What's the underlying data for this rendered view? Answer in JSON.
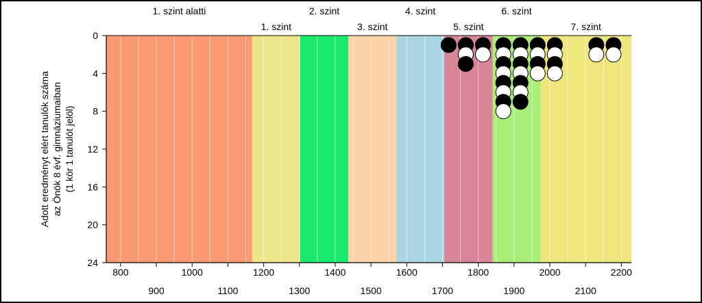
{
  "chart_data": {
    "type": "scatter",
    "ylabel_lines": [
      "Adott eredményt elért tanulók száma",
      "az Önök 8 évf. gimnáziumaiban",
      "(1 kör 1 tanulót jelöl)"
    ],
    "xlim": [
      760,
      2228
    ],
    "ylim": [
      0,
      24
    ],
    "y_reversed": true,
    "y_ticks": [
      0,
      4,
      8,
      12,
      16,
      20,
      24
    ],
    "x_ticks_row1": [
      800,
      1000,
      1200,
      1400,
      1600,
      1800,
      2000,
      2200
    ],
    "x_ticks_row2": [
      900,
      1100,
      1300,
      1500,
      1700,
      1900,
      2100
    ],
    "minor_step": 50,
    "bands": [
      {
        "label": "1. szint alatti",
        "x0": 760,
        "x1": 1168,
        "color": "#fb9a72",
        "label_row": 1
      },
      {
        "label": "1. szint",
        "x0": 1168,
        "x1": 1302,
        "color": "#ede58a",
        "label_row": 2
      },
      {
        "label": "2. szint",
        "x0": 1302,
        "x1": 1437,
        "color": "#1aea6c",
        "label_row": 1
      },
      {
        "label": "3. szint",
        "x0": 1437,
        "x1": 1571,
        "color": "#fdd3a8",
        "label_row": 2
      },
      {
        "label": "4. szint",
        "x0": 1571,
        "x1": 1705,
        "color": "#acd5e3",
        "label_row": 1
      },
      {
        "label": "5. szint",
        "x0": 1705,
        "x1": 1840,
        "color": "#d98598",
        "label_row": 2
      },
      {
        "label": "6. szint",
        "x0": 1840,
        "x1": 1974,
        "color": "#aaee7a",
        "label_row": 1
      },
      {
        "label": "7. szint",
        "x0": 1974,
        "x1": 2228,
        "color": "#ede67c",
        "label_row": 2
      }
    ],
    "columns": [
      {
        "x": 1717,
        "dots": [
          "black"
        ]
      },
      {
        "x": 1765,
        "dots": [
          "black",
          "white",
          "black"
        ]
      },
      {
        "x": 1813,
        "dots": [
          "black",
          "white"
        ]
      },
      {
        "x": 1870,
        "dots": [
          "black",
          "white",
          "black",
          "white",
          "black",
          "white",
          "black",
          "white"
        ]
      },
      {
        "x": 1918,
        "dots": [
          "black",
          "white",
          "black",
          "white",
          "black",
          "white",
          "black"
        ]
      },
      {
        "x": 1966,
        "dots": [
          "black",
          "white",
          "black",
          "white"
        ]
      },
      {
        "x": 2014,
        "dots": [
          "black",
          "white",
          "black",
          "white"
        ]
      },
      {
        "x": 2130,
        "dots": [
          "black",
          "white"
        ]
      },
      {
        "x": 2178,
        "dots": [
          "black",
          "white"
        ]
      }
    ]
  }
}
